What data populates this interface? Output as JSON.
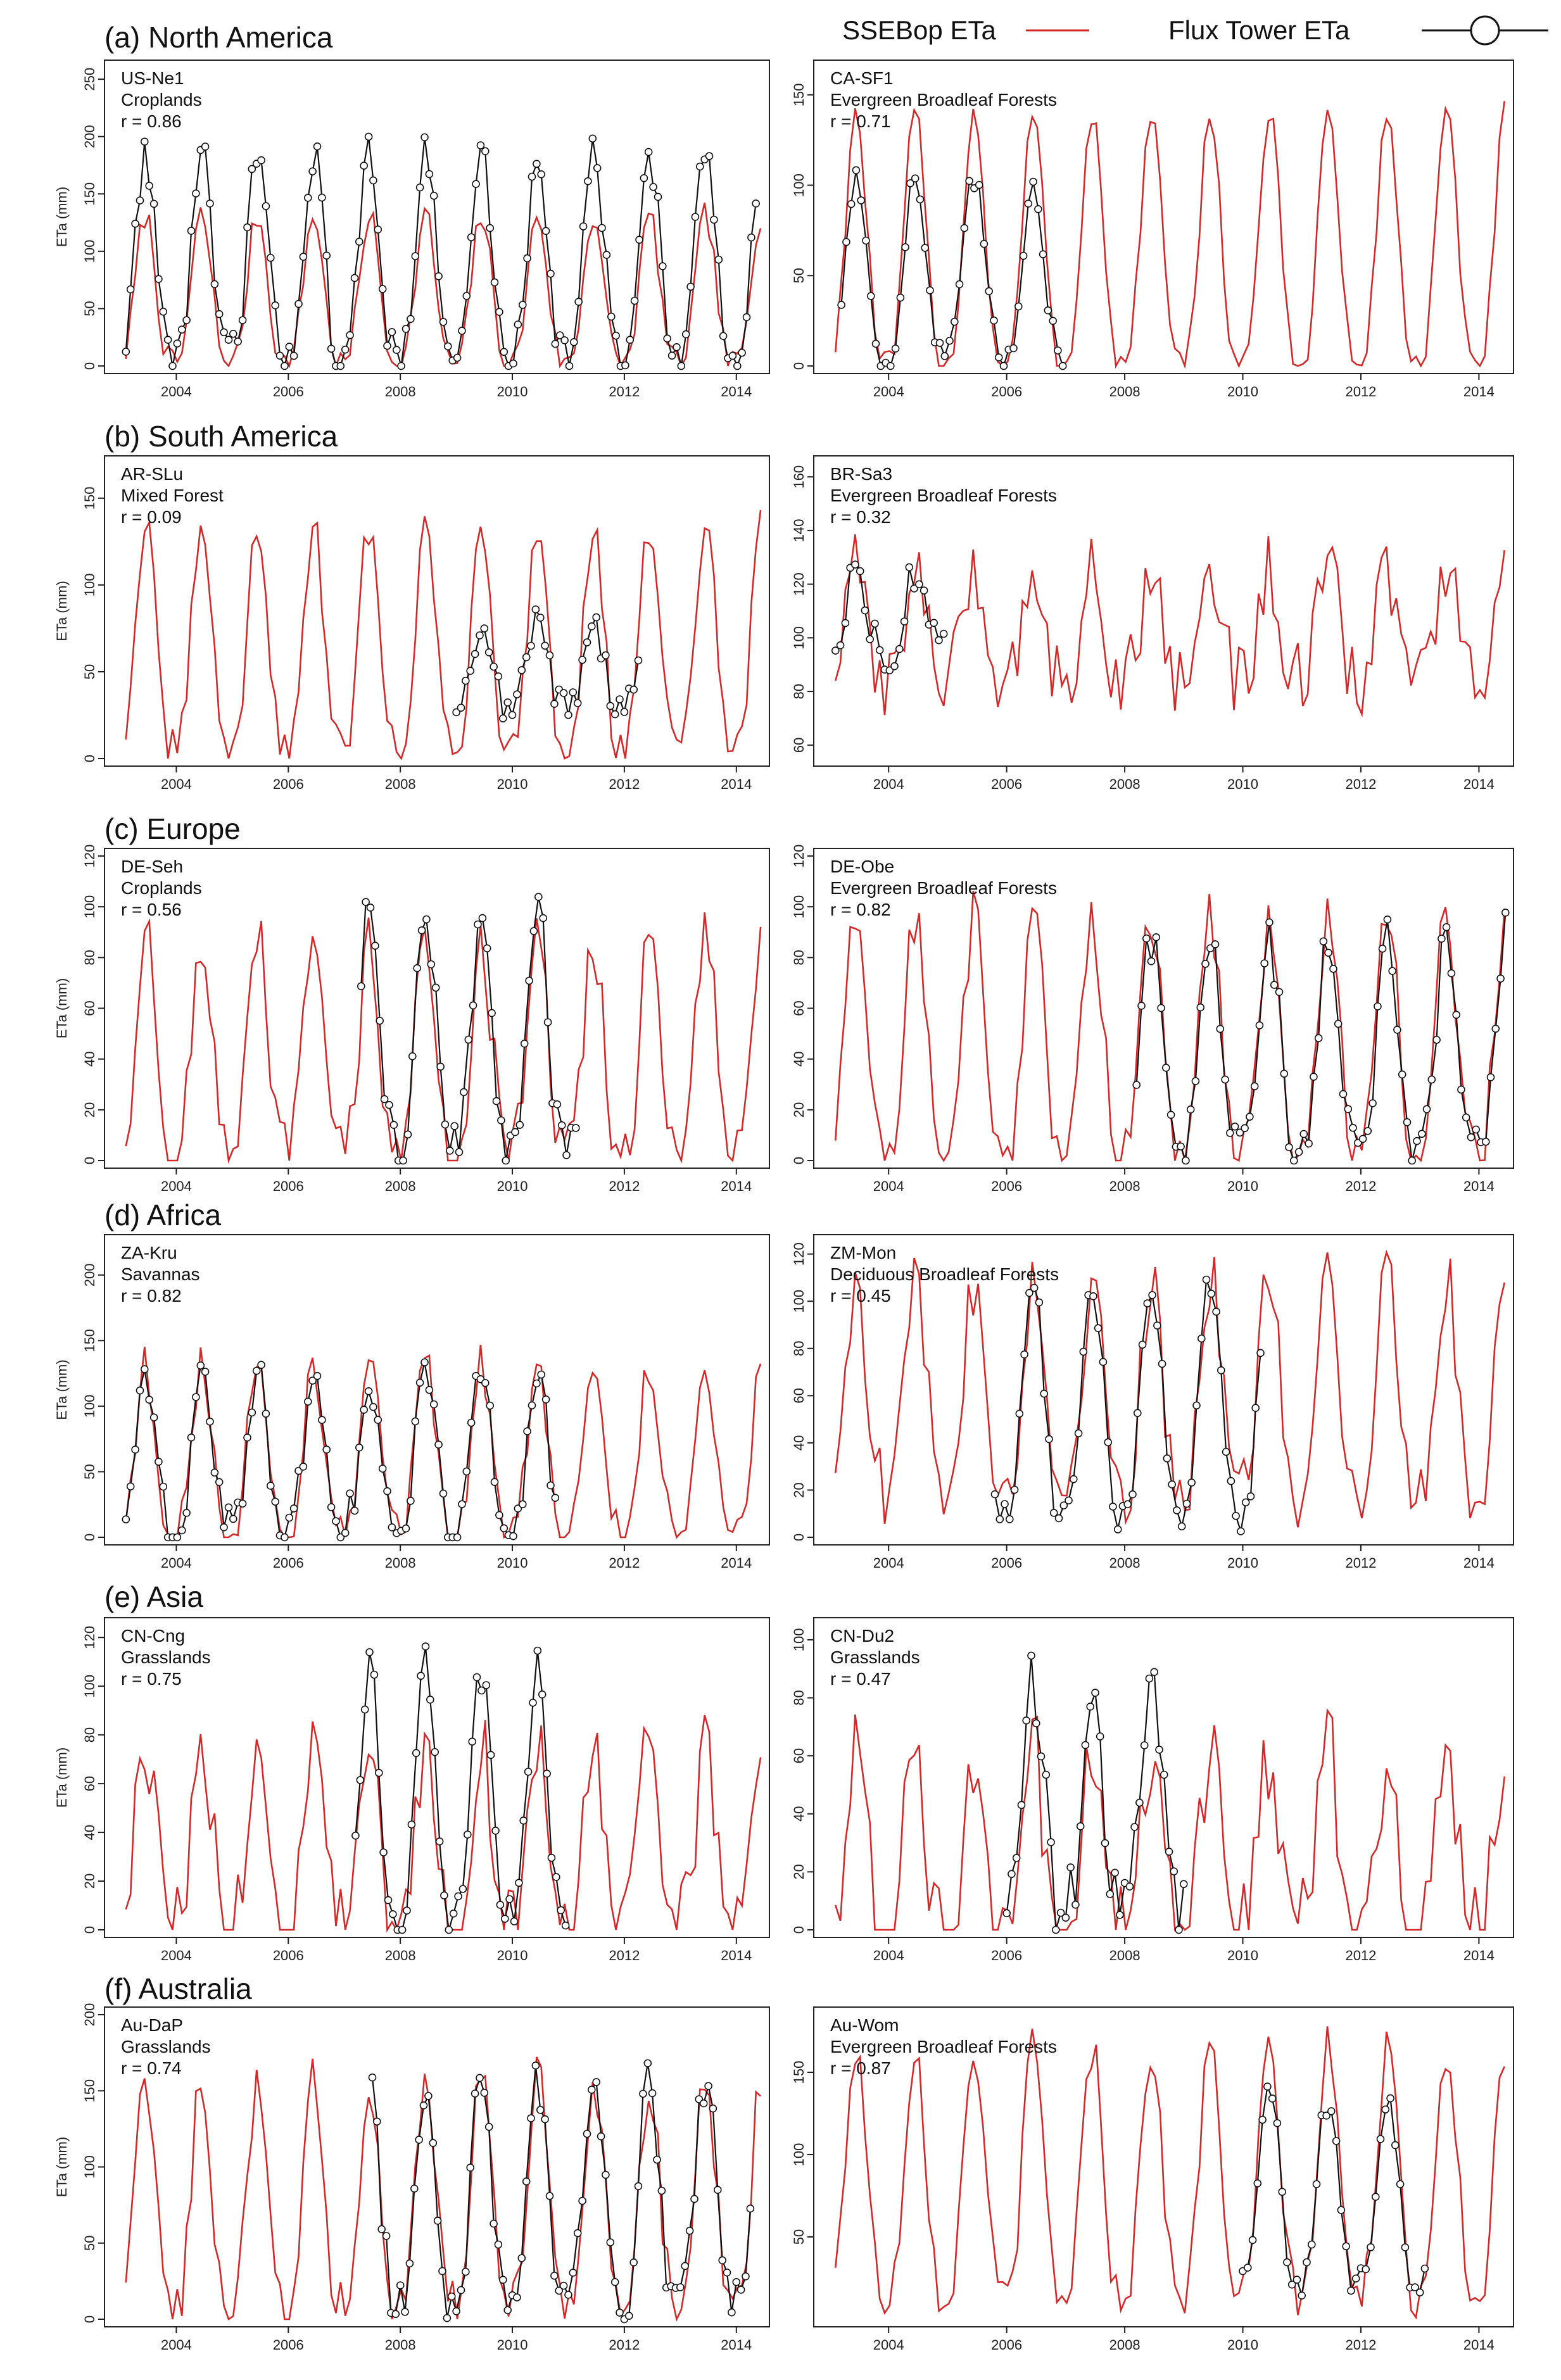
{
  "colors": {
    "sseb": "#d62728",
    "flux": "#111111"
  },
  "legend": {
    "sseb_label": "SSEBop ETa",
    "flux_label": "Flux Tower ETa"
  },
  "regions": [
    {
      "label": "(a) North America"
    },
    {
      "label": "(b) South America"
    },
    {
      "label": "(c) Europe"
    },
    {
      "label": "(d) Africa"
    },
    {
      "label": "(e) Asia"
    },
    {
      "label": "(f) Australia"
    }
  ],
  "chart_data": [
    {
      "type": "line",
      "site": "US-Ne1",
      "cover": "Croplands",
      "r_label": "r = 0.86",
      "ylabel": "ETa (mm)",
      "ylim": [
        0,
        260
      ],
      "yticks": [
        0,
        50,
        100,
        150,
        200,
        250
      ],
      "xticks": [
        2004,
        2006,
        2008,
        2010,
        2012,
        2014
      ],
      "xlim": [
        2003,
        2014.5
      ],
      "series": [
        {
          "name": "SSEBop ETa",
          "style": "line",
          "amp": 130,
          "base": 2,
          "noise": 12,
          "start": 2003.1,
          "end": 2014.45
        },
        {
          "name": "Flux Tower ETa",
          "style": "line+circle",
          "amp": 180,
          "base": 8,
          "noise": 20,
          "start": 2003.1,
          "end": 2014.4
        }
      ]
    },
    {
      "type": "line",
      "site": "CA-SF1",
      "cover": "Evergreen Broadleaf Forests",
      "r_label": "r = 0.71",
      "ylabel": "",
      "ylim": [
        0,
        165
      ],
      "yticks": [
        0,
        50,
        100,
        150
      ],
      "xticks": [
        2004,
        2006,
        2008,
        2010,
        2012,
        2014
      ],
      "xlim": [
        2003,
        2014.5
      ],
      "series": [
        {
          "name": "SSEBop ETa",
          "style": "line",
          "amp": 140,
          "base": 0,
          "noise": 8,
          "start": 2003.1,
          "end": 2014.45
        },
        {
          "name": "Flux Tower ETa",
          "style": "line+circle",
          "amp": 100,
          "base": 5,
          "noise": 10,
          "start": 2003.2,
          "end": 2007.0
        }
      ]
    },
    {
      "type": "line",
      "site": "AR-SLu",
      "cover": "Mixed Forest",
      "r_label": "r = 0.09",
      "ylabel": "ETa (mm)",
      "ylim": [
        0,
        170
      ],
      "yticks": [
        0,
        50,
        100,
        150
      ],
      "xticks": [
        2004,
        2006,
        2008,
        2010,
        2012,
        2014
      ],
      "xlim": [
        2003,
        2014.5
      ],
      "series": [
        {
          "name": "SSEBop ETa",
          "style": "line",
          "amp": 130,
          "base": 5,
          "noise": 12,
          "start": 2003.1,
          "end": 2014.45
        },
        {
          "name": "Flux Tower ETa",
          "style": "line+circle",
          "amp": 50,
          "base": 30,
          "noise": 10,
          "start": 2009.0,
          "end": 2012.3
        }
      ]
    },
    {
      "type": "line",
      "site": "BR-Sa3",
      "cover": "Evergreen Broadleaf Forests",
      "r_label": "r = 0.32",
      "ylabel": "",
      "ylim": [
        55,
        165
      ],
      "yticks": [
        60,
        80,
        100,
        120,
        140,
        160
      ],
      "xticks": [
        2004,
        2006,
        2008,
        2010,
        2012,
        2014
      ],
      "xlim": [
        2003,
        2014.5
      ],
      "series": [
        {
          "name": "SSEBop ETa",
          "style": "line",
          "amp": 40,
          "base": 85,
          "noise": 14,
          "start": 2003.1,
          "end": 2014.45
        },
        {
          "name": "Flux Tower ETa",
          "style": "line+circle",
          "amp": 30,
          "base": 95,
          "noise": 8,
          "start": 2003.1,
          "end": 2005.0
        }
      ]
    },
    {
      "type": "line",
      "site": "DE-Seh",
      "cover": "Croplands",
      "r_label": "r = 0.56",
      "ylabel": "ETa (mm)",
      "ylim": [
        0,
        120
      ],
      "yticks": [
        0,
        20,
        40,
        60,
        80,
        100,
        120
      ],
      "xticks": [
        2004,
        2006,
        2008,
        2010,
        2012,
        2014
      ],
      "xlim": [
        2003,
        2014.5
      ],
      "series": [
        {
          "name": "SSEBop ETa",
          "style": "line",
          "amp": 85,
          "base": 2,
          "noise": 14,
          "start": 2003.1,
          "end": 2014.45
        },
        {
          "name": "Flux Tower ETa",
          "style": "line+circle",
          "amp": 95,
          "base": 5,
          "noise": 10,
          "start": 2007.3,
          "end": 2011.2
        }
      ]
    },
    {
      "type": "line",
      "site": "DE-Obe",
      "cover": "Evergreen Broadleaf Forests",
      "r_label": "r = 0.82",
      "ylabel": "",
      "ylim": [
        0,
        120
      ],
      "yticks": [
        0,
        20,
        40,
        60,
        80,
        100,
        120
      ],
      "xticks": [
        2004,
        2006,
        2008,
        2010,
        2012,
        2014
      ],
      "xlim": [
        2003,
        2014.5
      ],
      "series": [
        {
          "name": "SSEBop ETa",
          "style": "line",
          "amp": 95,
          "base": 2,
          "noise": 12,
          "start": 2003.1,
          "end": 2014.45
        },
        {
          "name": "Flux Tower ETa",
          "style": "line+circle",
          "amp": 85,
          "base": 3,
          "noise": 10,
          "start": 2008.2,
          "end": 2014.45
        }
      ]
    },
    {
      "type": "line",
      "site": "ZA-Kru",
      "cover": "Savannas",
      "r_label": "r = 0.82",
      "ylabel": "ETa (mm)",
      "ylim": [
        0,
        225
      ],
      "yticks": [
        0,
        50,
        100,
        150,
        200
      ],
      "xticks": [
        2004,
        2006,
        2008,
        2010,
        2012,
        2014
      ],
      "xlim": [
        2003,
        2014.5
      ],
      "series": [
        {
          "name": "SSEBop ETa",
          "style": "line",
          "amp": 130,
          "base": 2,
          "noise": 16,
          "start": 2003.1,
          "end": 2014.45
        },
        {
          "name": "Flux Tower ETa",
          "style": "line+circle",
          "amp": 120,
          "base": 5,
          "noise": 20,
          "start": 2003.1,
          "end": 2010.8
        }
      ]
    },
    {
      "type": "line",
      "site": "ZM-Mon",
      "cover": "Deciduous Broadleaf Forests",
      "r_label": "r = 0.45",
      "ylabel": "",
      "ylim": [
        0,
        125
      ],
      "yticks": [
        0,
        20,
        40,
        60,
        80,
        100,
        120
      ],
      "xticks": [
        2004,
        2006,
        2008,
        2010,
        2012,
        2014
      ],
      "xlim": [
        2003,
        2014.5
      ],
      "series": [
        {
          "name": "SSEBop ETa",
          "style": "line",
          "amp": 90,
          "base": 20,
          "noise": 16,
          "start": 2003.1,
          "end": 2014.45
        },
        {
          "name": "Flux Tower ETa",
          "style": "line+circle",
          "amp": 100,
          "base": 10,
          "noise": 8,
          "start": 2005.8,
          "end": 2010.3
        }
      ]
    },
    {
      "type": "line",
      "site": "CN-Cng",
      "cover": "Grasslands",
      "r_label": "r = 0.75",
      "ylabel": "ETa (mm)",
      "ylim": [
        0,
        125
      ],
      "yticks": [
        0,
        20,
        40,
        60,
        80,
        100,
        120
      ],
      "xticks": [
        2004,
        2006,
        2008,
        2010,
        2012,
        2014
      ],
      "xlim": [
        2003,
        2014.5
      ],
      "series": [
        {
          "name": "SSEBop ETa",
          "style": "line",
          "amp": 75,
          "base": 1,
          "noise": 18,
          "start": 2003.1,
          "end": 2014.45
        },
        {
          "name": "Flux Tower ETa",
          "style": "line+circle",
          "amp": 105,
          "base": 3,
          "noise": 10,
          "start": 2007.2,
          "end": 2011.0
        }
      ]
    },
    {
      "type": "line",
      "site": "CN-Du2",
      "cover": "Grasslands",
      "r_label": "r = 0.47",
      "ylabel": "",
      "ylim": [
        0,
        105
      ],
      "yticks": [
        0,
        20,
        40,
        60,
        80,
        100
      ],
      "xticks": [
        2004,
        2006,
        2008,
        2010,
        2012,
        2014
      ],
      "xlim": [
        2003,
        2014.5
      ],
      "series": [
        {
          "name": "SSEBop ETa",
          "style": "line",
          "amp": 60,
          "base": 1,
          "noise": 18,
          "start": 2003.1,
          "end": 2014.45
        },
        {
          "name": "Flux Tower ETa",
          "style": "line+circle",
          "amp": 85,
          "base": 3,
          "noise": 14,
          "start": 2006.0,
          "end": 2009.0
        }
      ]
    },
    {
      "type": "line",
      "site": "Au-DaP",
      "cover": "Grasslands",
      "r_label": "r = 0.74",
      "ylabel": "ETa (mm)",
      "ylim": [
        0,
        200
      ],
      "yticks": [
        0,
        50,
        100,
        150,
        200
      ],
      "xticks": [
        2004,
        2006,
        2008,
        2010,
        2012,
        2014
      ],
      "xlim": [
        2003,
        2014.5
      ],
      "series": [
        {
          "name": "SSEBop ETa",
          "style": "line",
          "amp": 150,
          "base": 8,
          "noise": 18,
          "start": 2003.1,
          "end": 2014.45
        },
        {
          "name": "Flux Tower ETa",
          "style": "line+circle",
          "amp": 150,
          "base": 10,
          "noise": 18,
          "start": 2007.5,
          "end": 2014.3
        }
      ]
    },
    {
      "type": "line",
      "site": "Au-Wom",
      "cover": "Evergreen Broadleaf Forests",
      "r_label": "r = 0.87",
      "ylabel": "",
      "ylim": [
        0,
        185
      ],
      "yticks": [
        50,
        100,
        150
      ],
      "xticks": [
        2004,
        2006,
        2008,
        2010,
        2012,
        2014
      ],
      "xlim": [
        2003,
        2014.5
      ],
      "series": [
        {
          "name": "SSEBop ETa",
          "style": "line",
          "amp": 150,
          "base": 15,
          "noise": 14,
          "start": 2003.1,
          "end": 2014.45
        },
        {
          "name": "Flux Tower ETa",
          "style": "line+circle",
          "amp": 110,
          "base": 25,
          "noise": 12,
          "start": 2010.0,
          "end": 2013.1
        }
      ]
    }
  ]
}
